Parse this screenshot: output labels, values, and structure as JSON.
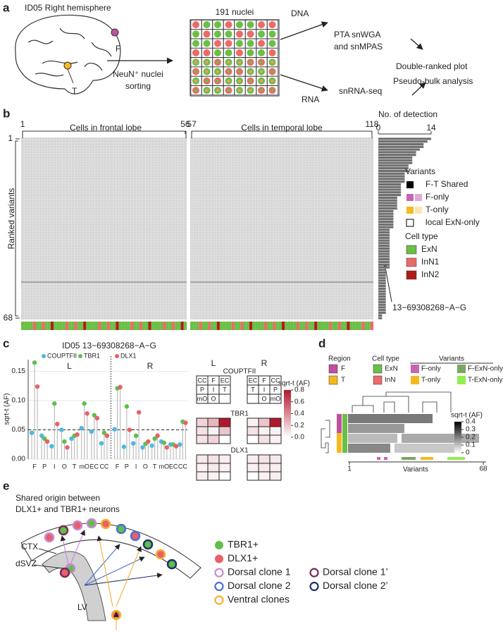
{
  "panel_labels": {
    "a": "a",
    "b": "b",
    "c": "c",
    "d": "d",
    "e": "e"
  },
  "panel_a": {
    "title": "ID05 Right hemisphere",
    "region_f": "F",
    "region_t": "T",
    "sorting": [
      "NeuN⁺ nuclei",
      "sorting"
    ],
    "plate_title": "191 nuclei",
    "dna": "DNA",
    "rna": "RNA",
    "dna_method": [
      "PTA snWGA",
      "and snMPAS"
    ],
    "rna_method": "snRNA-seq",
    "outputs": [
      "Double-ranked plot",
      "Pseudo-bulk analysis"
    ]
  },
  "panel_b": {
    "cell_ticks": [
      1,
      56,
      57,
      118
    ],
    "frontal_label": "Cells in frontal lobe",
    "temporal_label": "Cells in temporal lobe",
    "y_label": "Ranked variants",
    "y_ticks": [
      1,
      68
    ],
    "detection": {
      "title": "No. of detection",
      "xlim": [
        0,
        14
      ],
      "xticks": [
        0,
        14
      ],
      "color": "#6e6e6e",
      "values": [
        14,
        13,
        12,
        12,
        11,
        10,
        10,
        9,
        9,
        9,
        8,
        8,
        8,
        7,
        7,
        7,
        7,
        6,
        6,
        6,
        6,
        6,
        5,
        5,
        5,
        5,
        5,
        4,
        4,
        4,
        4,
        4,
        4,
        4,
        3,
        3,
        3,
        3,
        3,
        3,
        3,
        3,
        3,
        3,
        3,
        3,
        3,
        3,
        3,
        2,
        2,
        2,
        2,
        2,
        2,
        2,
        2,
        2,
        2,
        2,
        2,
        2,
        2,
        2,
        2,
        2,
        1,
        1
      ]
    },
    "legend": {
      "variants_title": "Variants",
      "variants": [
        "F-T Shared",
        "F-only",
        "T-only",
        "local ExN-only"
      ],
      "cell_type_title": "Cell type",
      "cell_types": [
        {
          "name": "ExN",
          "color": "#6bbf45"
        },
        {
          "name": "InN1",
          "color": "#ec6a6a"
        },
        {
          "name": "InN2",
          "color": "#b31b1b"
        }
      ]
    },
    "callout": "13−69308268−A−G"
  },
  "chart_data": {
    "type": "lollipop",
    "title": "ID05 13−69308268−A−G",
    "y_label": "sqrt-t (AF)",
    "ylim": [
      0,
      0.17
    ],
    "yticks": [
      {
        "value": 0,
        "label": "0.00"
      },
      {
        "value": 0.05,
        "label": "0.05"
      },
      {
        "value": 0.1,
        "label": "0.10"
      },
      {
        "value": 0.15,
        "label": "0.15"
      }
    ],
    "threshold": 0.05,
    "grid": true,
    "panels": [
      {
        "name": "L",
        "categories": [
          "F",
          "P",
          "I",
          "O",
          "T",
          "mO",
          "EC",
          "CC"
        ],
        "series": [
          {
            "name": "COUPTFII",
            "color": "#4fb8e0",
            "values": [
              0.045,
              0.04,
              0.022,
              0.05,
              0.035,
              0.053,
              0.047,
              0.027
            ]
          },
          {
            "name": "TBR1",
            "color": "#5fbf4a",
            "values": [
              0.165,
              0.035,
              0.095,
              0.03,
              0.04,
              0.095,
              0.075,
              0.045
            ]
          },
          {
            "name": "DLX1",
            "color": "#e8606a",
            "values": [
              0.124,
              0.03,
              0.06,
              0.02,
              0.042,
              0.078,
              0.07,
              0.04
            ]
          }
        ]
      },
      {
        "name": "R",
        "categories": [
          "F",
          "P",
          "I",
          "O",
          "T",
          "mO",
          "EC",
          "CC"
        ],
        "series": [
          {
            "name": "COUPTFII",
            "color": "#4fb8e0",
            "values": [
              0.051,
              0.021,
              0.027,
              0.02,
              0.023,
              0.03,
              0.025,
              0.025
            ]
          },
          {
            "name": "TBR1",
            "color": "#5fbf4a",
            "values": [
              0.121,
              0.09,
              0.04,
              0.026,
              0.035,
              0.028,
              0.025,
              0.064
            ]
          },
          {
            "name": "DLX1",
            "color": "#e8606a",
            "values": [
              0.123,
              0.05,
              0.08,
              0.03,
              0.04,
              0.02,
              0.022,
              0.062
            ]
          }
        ]
      }
    ]
  },
  "panel_c_heatmaps": {
    "sides": [
      "L",
      "R"
    ],
    "legend_title": "sqrt-t (AF)",
    "lim": [
      0,
      0.8
    ],
    "ticks": [
      {
        "value": 0,
        "label": "0.0"
      },
      {
        "value": 0.2,
        "label": "0.2"
      },
      {
        "value": 0.4,
        "label": "0.4"
      },
      {
        "value": 0.6,
        "label": "0.6"
      },
      {
        "value": 0.8,
        "label": "0.8"
      }
    ],
    "layout_title": "COUPTFII",
    "layout": {
      "L": [
        [
          "CC",
          "F",
          "EC"
        ],
        [
          "P",
          "I",
          "T"
        ],
        [
          "mO",
          "O",
          null
        ]
      ],
      "R": [
        [
          "EC",
          "F",
          "CC"
        ],
        [
          "T",
          "I",
          "P"
        ],
        [
          null,
          "O",
          "mO"
        ]
      ]
    },
    "genes": [
      {
        "name": "TBR1",
        "L": [
          [
            0.15,
            0.25,
            0.8
          ],
          [
            0.1,
            0.05,
            0.2
          ],
          [
            0.1,
            0.15,
            null
          ]
        ],
        "R": [
          [
            0.05,
            0.2,
            0.8
          ],
          [
            0.1,
            0.05,
            0.05
          ],
          [
            null,
            0.1,
            0.05
          ]
        ]
      },
      {
        "name": "DLX1",
        "L": [
          [
            0.08,
            0.1,
            0.06
          ],
          [
            0.05,
            0.08,
            0.05
          ],
          [
            0.06,
            0.05,
            null
          ]
        ],
        "R": [
          [
            0.06,
            0.1,
            0.08
          ],
          [
            0.05,
            0.08,
            0.06
          ],
          [
            null,
            0.05,
            0.06
          ]
        ]
      }
    ]
  },
  "panel_d": {
    "region_title": "Region",
    "regions": [
      {
        "name": "F",
        "color": "#c050a0"
      },
      {
        "name": "T",
        "color": "#f5b820"
      }
    ],
    "cell_type_title": "Cell type",
    "cell_types": [
      {
        "name": "ExN",
        "color": "#6bbf45"
      },
      {
        "name": "InN",
        "color": "#ec6a6a"
      }
    ],
    "variants_title": "Variants",
    "variants": [
      {
        "name": "F-only",
        "color": "#c864b4"
      },
      {
        "name": "T-only",
        "color": "#f5b820"
      },
      {
        "name": "F-ExN-only",
        "color": "#7aa860"
      },
      {
        "name": "T-ExN-only",
        "color": "#90ee50"
      }
    ],
    "scale_title": "sqrt-t (AF)",
    "scale_lim": [
      0,
      0.4
    ],
    "scale_ticks": [
      0,
      0.1,
      0.2,
      0.3,
      0.4
    ],
    "x_label": "Variants",
    "x_ticks": [
      1,
      68
    ]
  },
  "panel_e": {
    "title": [
      "Shared origin between",
      "DLX1+ and TBR1+ neurons"
    ],
    "ctx": "CTX",
    "dsvz": "dSVZ",
    "lv": "LV",
    "legend": [
      {
        "name": "TBR1+",
        "kind": "fill",
        "color": "#5fbf4a"
      },
      {
        "name": "DLX1+",
        "kind": "fill",
        "color": "#e8606a"
      },
      {
        "name": "Dorsal clone 1",
        "kind": "ring",
        "color": "#c68ad8"
      },
      {
        "name": "Dorsal clone 1’",
        "kind": "ring",
        "color": "#7a2a5a"
      },
      {
        "name": "Dorsal clone 2",
        "kind": "ring",
        "color": "#4a70d0"
      },
      {
        "name": "Dorsal clone 2’",
        "kind": "ring",
        "color": "#203070"
      },
      {
        "name": "Ventral clones",
        "kind": "ring",
        "color": "#f5b030"
      }
    ]
  }
}
